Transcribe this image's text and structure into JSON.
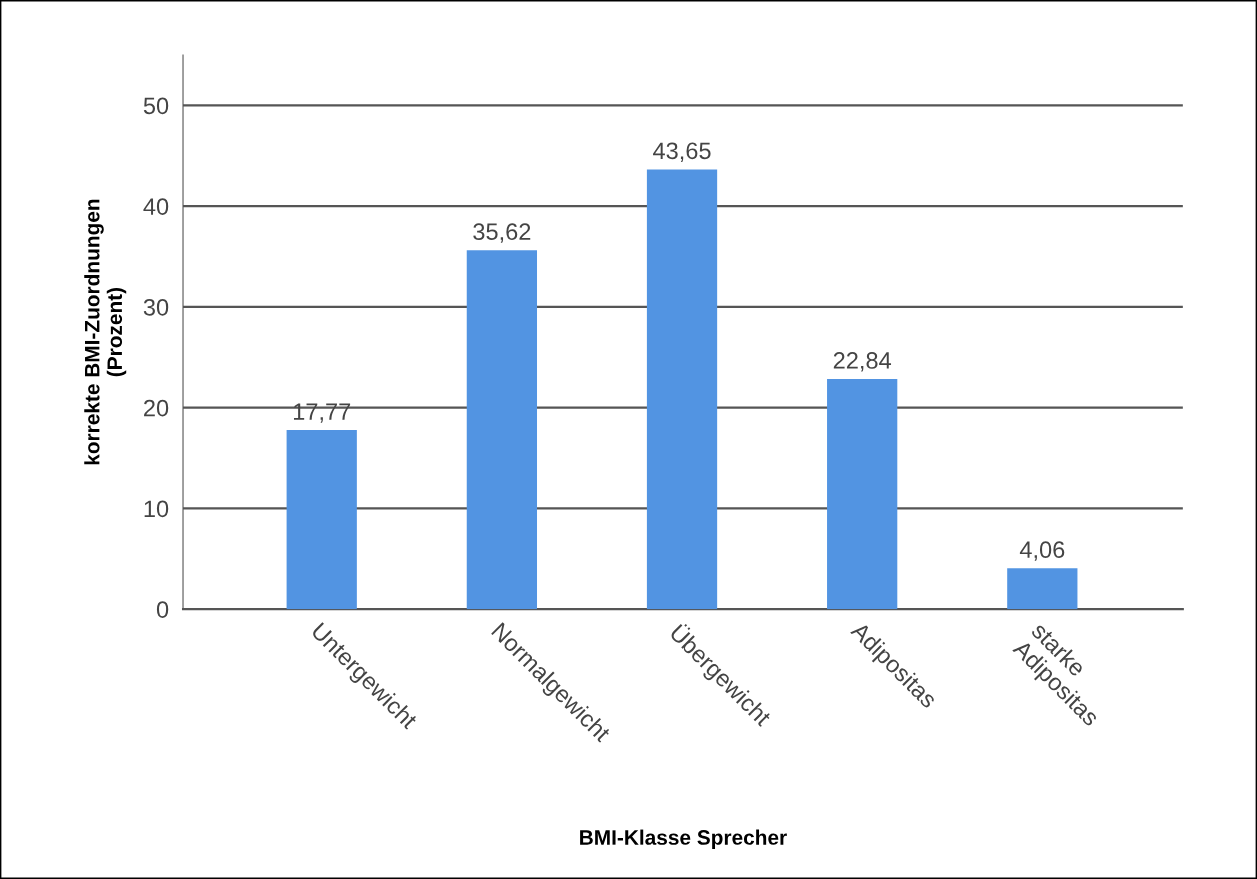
{
  "chart_data": {
    "type": "bar",
    "xlabel": "BMI-Klasse Sprecher",
    "ylabel": "korrekte BMI-Zuordnungen\n(Prozent)",
    "categories": [
      "Untergewicht",
      "Normalgewicht",
      "Übergewicht",
      "Adipositas",
      "starke\nAdipositas"
    ],
    "values": [
      17.77,
      35.62,
      43.65,
      22.84,
      4.06
    ],
    "value_labels": [
      "17,77",
      "35,62",
      "43,65",
      "22,84",
      "4,06"
    ],
    "color": "#5294e2",
    "ylim": [
      0,
      55
    ],
    "yticks": [
      0,
      10,
      20,
      30,
      40,
      50
    ],
    "grid": "y",
    "legend": false
  }
}
